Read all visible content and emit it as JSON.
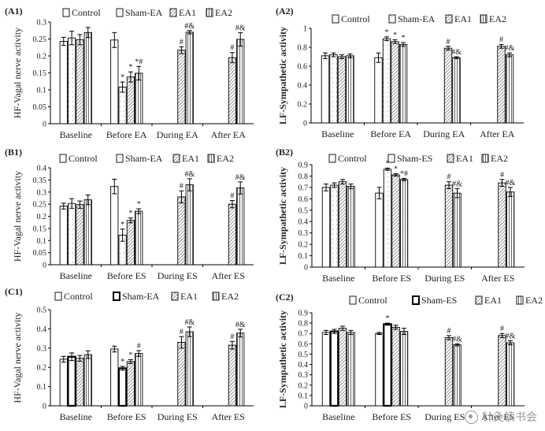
{
  "colors": {
    "bar_fill": "#ffffff",
    "bar_stroke": "#000000",
    "hatch": "#555555",
    "dots": "#555555",
    "axis": "#000000",
    "watermark": "#9a9a9a"
  },
  "watermark": {
    "icon": "wechat-channel-icon",
    "text": "针灸读书会"
  },
  "chart_data": [
    {
      "id": "A1",
      "panel_label": "(A1)",
      "type": "bar",
      "ylabel": "HF-Vagal nerve activity",
      "ylim": [
        0,
        0.3
      ],
      "yticks": [
        0,
        0.05,
        0.1,
        0.15,
        0.2,
        0.25,
        0.3
      ],
      "categories": [
        "Baseline",
        "Before EA",
        "During EA",
        "After EA"
      ],
      "legend": [
        "Control",
        "Sham-EA",
        "EA1",
        "EA2"
      ],
      "series": [
        {
          "name": "Control",
          "pattern": "plain",
          "values": [
            0.243,
            0.247,
            null,
            null
          ],
          "errors": [
            0.012,
            0.022,
            null,
            null
          ],
          "marks": [
            "",
            "",
            "",
            ""
          ]
        },
        {
          "name": "Sham-EA",
          "pattern": "dots",
          "values": [
            0.253,
            0.108,
            null,
            null
          ],
          "errors": [
            0.02,
            0.015,
            null,
            null
          ],
          "marks": [
            "",
            "*",
            "",
            ""
          ]
        },
        {
          "name": "EA1",
          "pattern": "diag",
          "values": [
            0.248,
            0.138,
            0.217,
            0.195
          ],
          "errors": [
            0.015,
            0.015,
            0.01,
            0.015
          ],
          "marks": [
            "",
            "*",
            "#",
            "#"
          ]
        },
        {
          "name": "EA2",
          "pattern": "vert",
          "values": [
            0.269,
            0.149,
            0.27,
            0.249
          ],
          "errors": [
            0.015,
            0.02,
            0.005,
            0.02
          ],
          "marks": [
            "",
            "*#",
            "#&",
            "#&"
          ]
        }
      ]
    },
    {
      "id": "A2",
      "panel_label": "(A2)",
      "type": "bar",
      "ylabel": "LF-Sympathetic activity",
      "ylim": [
        0,
        1
      ],
      "yticks": [
        0,
        0.2,
        0.4,
        0.6,
        0.8,
        1
      ],
      "categories": [
        "Baseline",
        "Before EA",
        "During EA",
        "After EA"
      ],
      "legend": [
        "Control",
        "Sham-EA",
        "EA1",
        "EA2"
      ],
      "series": [
        {
          "name": "Control",
          "pattern": "plain",
          "values": [
            0.71,
            0.69,
            null,
            null
          ],
          "errors": [
            0.03,
            0.05,
            null,
            null
          ],
          "marks": [
            "",
            "",
            "",
            ""
          ]
        },
        {
          "name": "Sham-EA",
          "pattern": "dots",
          "values": [
            0.72,
            0.89,
            null,
            null
          ],
          "errors": [
            0.02,
            0.02,
            null,
            null
          ],
          "marks": [
            "",
            "*",
            "",
            ""
          ]
        },
        {
          "name": "EA1",
          "pattern": "diag",
          "values": [
            0.7,
            0.86,
            0.79,
            0.81
          ],
          "errors": [
            0.02,
            0.02,
            0.02,
            0.02
          ],
          "marks": [
            "",
            "*",
            "#",
            "#"
          ]
        },
        {
          "name": "EA2",
          "pattern": "vert",
          "values": [
            0.71,
            0.83,
            0.69,
            0.72
          ],
          "errors": [
            0.02,
            0.02,
            0.01,
            0.02
          ],
          "marks": [
            "",
            "*",
            "#&",
            "#&"
          ]
        }
      ]
    },
    {
      "id": "B1",
      "panel_label": "(B1)",
      "type": "bar",
      "ylabel": "HF-Vagal nerve activity",
      "ylim": [
        0,
        0.4
      ],
      "yticks": [
        0,
        0.05,
        0.1,
        0.15,
        0.2,
        0.25,
        0.3,
        0.35,
        0.4
      ],
      "categories": [
        "Baseline",
        "Before ES",
        "During ES",
        "After ES"
      ],
      "legend": [
        "Control",
        "Sham-EA",
        "EA1",
        "EA2"
      ],
      "series": [
        {
          "name": "Control",
          "pattern": "plain",
          "values": [
            0.242,
            0.323,
            null,
            null
          ],
          "errors": [
            0.012,
            0.03,
            null,
            null
          ],
          "marks": [
            "",
            "",
            "",
            ""
          ]
        },
        {
          "name": "Sham-EA",
          "pattern": "dots",
          "values": [
            0.253,
            0.122,
            null,
            null
          ],
          "errors": [
            0.02,
            0.025,
            null,
            null
          ],
          "marks": [
            "",
            "*",
            "",
            ""
          ]
        },
        {
          "name": "EA1",
          "pattern": "diag",
          "values": [
            0.248,
            0.183,
            0.28,
            0.25
          ],
          "errors": [
            0.015,
            0.01,
            0.025,
            0.015
          ],
          "marks": [
            "",
            "*",
            "#",
            "#"
          ]
        },
        {
          "name": "EA2",
          "pattern": "vert",
          "values": [
            0.268,
            0.221,
            0.33,
            0.317
          ],
          "errors": [
            0.02,
            0.01,
            0.025,
            0.025
          ],
          "marks": [
            "",
            "*",
            "#&",
            "#&"
          ]
        }
      ]
    },
    {
      "id": "B2",
      "panel_label": "(B2)",
      "type": "bar",
      "ylabel": "LF-Sympathetic activity",
      "ylim": [
        0,
        0.9
      ],
      "yticks": [
        0,
        0.1,
        0.2,
        0.3,
        0.4,
        0.5,
        0.6,
        0.7,
        0.8,
        0.9
      ],
      "categories": [
        "Baseline",
        "Before ES",
        "During ES",
        "After ES"
      ],
      "legend": [
        "Control",
        "Sham-ES",
        "EA1",
        "EA2"
      ],
      "series": [
        {
          "name": "Control",
          "pattern": "plain",
          "values": [
            0.7,
            0.65,
            null,
            null
          ],
          "errors": [
            0.03,
            0.05,
            null,
            null
          ],
          "marks": [
            "",
            "",
            "",
            ""
          ]
        },
        {
          "name": "Sham-ES",
          "pattern": "dots",
          "values": [
            0.72,
            0.86,
            null,
            null
          ],
          "errors": [
            0.02,
            0.01,
            null,
            null
          ],
          "marks": [
            "",
            "*",
            "",
            ""
          ]
        },
        {
          "name": "EA1",
          "pattern": "diag",
          "values": [
            0.75,
            0.81,
            0.72,
            0.74
          ],
          "errors": [
            0.02,
            0.01,
            0.03,
            0.03
          ],
          "marks": [
            "",
            "*",
            "#",
            "#"
          ]
        },
        {
          "name": "EA2",
          "pattern": "vert",
          "values": [
            0.71,
            0.77,
            0.65,
            0.66
          ],
          "errors": [
            0.02,
            0.01,
            0.04,
            0.04
          ],
          "marks": [
            "",
            "*#",
            "#&",
            "#&"
          ]
        }
      ]
    },
    {
      "id": "C1",
      "panel_label": "(C1)",
      "type": "bar",
      "ylabel": "HF-Vagal nerve activity",
      "ylim": [
        0,
        0.5
      ],
      "yticks": [
        0,
        0.1,
        0.2,
        0.3,
        0.4,
        0.5
      ],
      "categories": [
        "Baseline",
        "Before ES",
        "During ES",
        "After ES"
      ],
      "legend": [
        "Control",
        "Sham-EA",
        "EA1",
        "EA2"
      ],
      "series": [
        {
          "name": "Control",
          "pattern": "plain",
          "values": [
            0.242,
            0.295,
            null,
            null
          ],
          "errors": [
            0.015,
            0.015,
            null,
            null
          ],
          "marks": [
            "",
            "",
            "",
            ""
          ]
        },
        {
          "name": "Sham-EA",
          "pattern": "dark",
          "values": [
            0.255,
            0.195,
            null,
            null
          ],
          "errors": [
            0.02,
            0.01,
            null,
            null
          ],
          "marks": [
            "",
            "*",
            "",
            ""
          ]
        },
        {
          "name": "EA1",
          "pattern": "diag",
          "values": [
            0.247,
            0.23,
            0.33,
            0.315
          ],
          "errors": [
            0.015,
            0.01,
            0.03,
            0.02
          ],
          "marks": [
            "",
            "*",
            "#",
            "#"
          ]
        },
        {
          "name": "EA2",
          "pattern": "vert",
          "values": [
            0.266,
            0.272,
            0.385,
            0.378
          ],
          "errors": [
            0.02,
            0.015,
            0.025,
            0.02
          ],
          "marks": [
            "",
            "#",
            "#&",
            "#&"
          ]
        }
      ]
    },
    {
      "id": "C2",
      "panel_label": "(C2)",
      "type": "bar",
      "ylabel": "LF-Sympathetic activity",
      "ylim": [
        0,
        0.9
      ],
      "yticks": [
        0,
        0.1,
        0.2,
        0.3,
        0.4,
        0.5,
        0.6,
        0.7,
        0.8,
        0.9
      ],
      "categories": [
        "Baseline",
        "Before ES",
        "During ES",
        "After ES"
      ],
      "legend": [
        "Control",
        "Sham-ES",
        "EA1",
        "EA2"
      ],
      "series": [
        {
          "name": "Control",
          "pattern": "plain",
          "values": [
            0.71,
            0.7,
            null,
            null
          ],
          "errors": [
            0.02,
            0.01,
            null,
            null
          ],
          "marks": [
            "",
            "",
            "",
            ""
          ]
        },
        {
          "name": "Sham-ES",
          "pattern": "dark",
          "values": [
            0.72,
            0.79,
            null,
            null
          ],
          "errors": [
            0.02,
            0.01,
            null,
            null
          ],
          "marks": [
            "",
            "*",
            "",
            ""
          ]
        },
        {
          "name": "EA1",
          "pattern": "diag",
          "values": [
            0.75,
            0.76,
            0.66,
            0.68
          ],
          "errors": [
            0.02,
            0.02,
            0.02,
            0.02
          ],
          "marks": [
            "",
            "",
            "#",
            "#"
          ]
        },
        {
          "name": "EA2",
          "pattern": "vert",
          "values": [
            0.71,
            0.72,
            0.59,
            0.61
          ],
          "errors": [
            0.02,
            0.03,
            0.01,
            0.02
          ],
          "marks": [
            "",
            "",
            "#&",
            "#&"
          ]
        }
      ]
    }
  ]
}
